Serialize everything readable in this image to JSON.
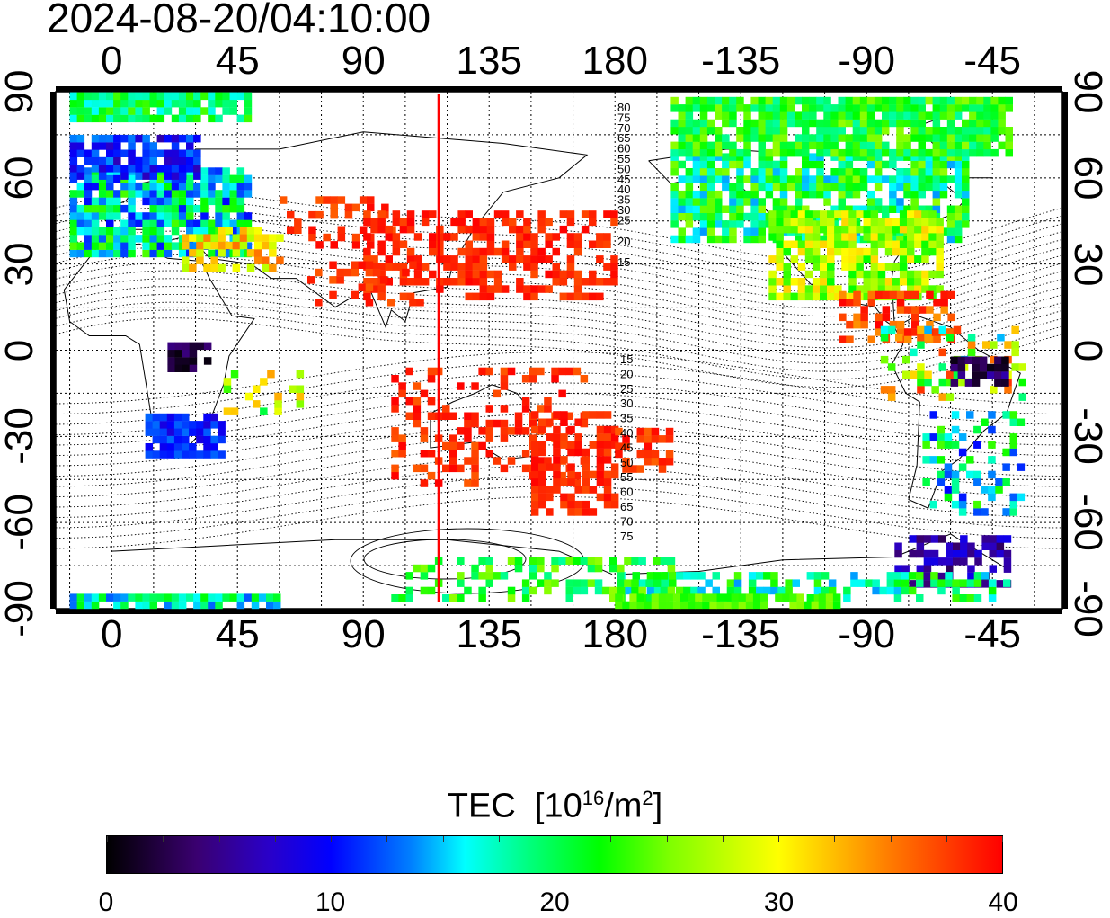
{
  "title": "2024-08-20/04:10:00",
  "map": {
    "x_ticks_top": [
      "0",
      "45",
      "90",
      "135",
      "180",
      "-135",
      "-90",
      "-45"
    ],
    "x_ticks_bottom": [
      "0",
      "45",
      "90",
      "135",
      "180",
      "-135",
      "-90",
      "-45"
    ],
    "y_ticks_left": [
      "90",
      "60",
      "30",
      "0",
      "-30",
      "-60",
      "-90"
    ],
    "y_ticks_right": [
      "90",
      "60",
      "30",
      "0",
      "-30",
      "-60",
      "-90"
    ],
    "contour_labels_north": [
      "80",
      "75",
      "70",
      "65",
      "60",
      "55",
      "50",
      "45",
      "40",
      "35",
      "30",
      "25",
      "20",
      "15"
    ],
    "contour_labels_south": [
      "15",
      "20",
      "25",
      "30",
      "35",
      "40",
      "45",
      "50",
      "55",
      "60",
      "65",
      "70",
      "75"
    ],
    "marker_line_longitude": 117,
    "marker_color": "#ff0000"
  },
  "colorbar": {
    "title": "TEC",
    "unit_prefix": "[10",
    "unit_exp": "16",
    "unit_mid": "/m",
    "unit_exp2": "2",
    "unit_suffix": "]",
    "tick_labels": [
      "0",
      "10",
      "20",
      "30",
      "40"
    ],
    "range": [
      0,
      40
    ]
  }
}
